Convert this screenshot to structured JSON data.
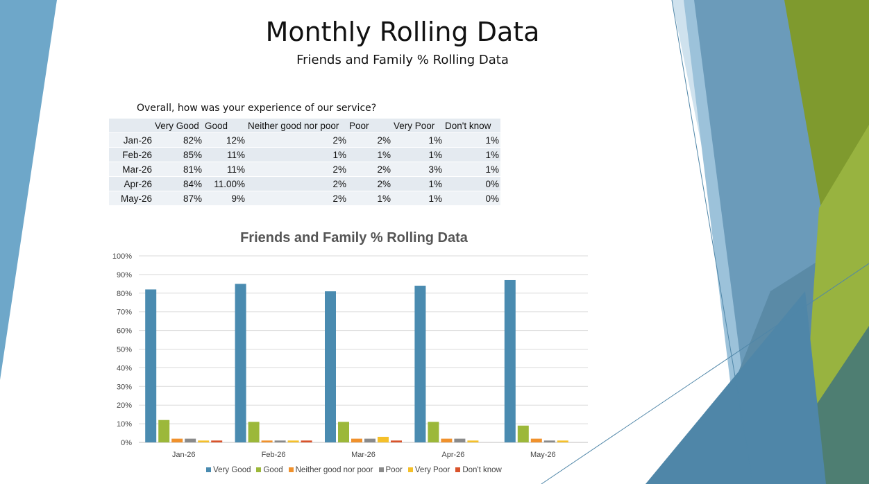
{
  "slide": {
    "title": "Monthly Rolling Data",
    "subtitle": "Friends and Family % Rolling Data"
  },
  "table": {
    "question": "Overall,  how was your experience of our service?",
    "headers": [
      "",
      "Very Good",
      "Good",
      "Neither good nor poor",
      "Poor",
      "Very Poor",
      "Don't know"
    ],
    "rows": [
      [
        "Jan-26",
        "82%",
        "12%",
        "2%",
        "2%",
        "1%",
        "1%"
      ],
      [
        "Feb-26",
        "85%",
        "11%",
        "1%",
        "1%",
        "1%",
        "1%"
      ],
      [
        "Mar-26",
        "81%",
        "11%",
        "2%",
        "2%",
        "3%",
        "1%"
      ],
      [
        "Apr-26",
        "84%",
        "11.00%",
        "2%",
        "2%",
        "1%",
        "0%"
      ],
      [
        "May-26",
        "87%",
        "9%",
        "2%",
        "1%",
        "1%",
        "0%"
      ]
    ]
  },
  "chart_data": {
    "type": "bar",
    "title": "Friends and Family % Rolling Data",
    "categories": [
      "Jan-26",
      "Feb-26",
      "Mar-26",
      "Apr-26",
      "May-26"
    ],
    "ylim": [
      0,
      100
    ],
    "yticks": [
      "0%",
      "10%",
      "20%",
      "30%",
      "40%",
      "50%",
      "60%",
      "70%",
      "80%",
      "90%",
      "100%"
    ],
    "grid": true,
    "legend_position": "bottom",
    "series": [
      {
        "name": "Very Good",
        "color": "#4a8bb0",
        "values": [
          82,
          85,
          81,
          84,
          87
        ]
      },
      {
        "name": "Good",
        "color": "#9cb83a",
        "values": [
          12,
          11,
          11,
          11,
          9
        ]
      },
      {
        "name": "Neither good nor poor",
        "color": "#f0912c",
        "values": [
          2,
          1,
          2,
          2,
          2
        ]
      },
      {
        "name": "Poor",
        "color": "#8a8a8a",
        "values": [
          2,
          1,
          2,
          2,
          1
        ]
      },
      {
        "name": "Very Poor",
        "color": "#f5c02a",
        "values": [
          1,
          1,
          3,
          1,
          1
        ]
      },
      {
        "name": "Don't know",
        "color": "#d9532b",
        "values": [
          1,
          1,
          1,
          0,
          0
        ]
      }
    ]
  }
}
